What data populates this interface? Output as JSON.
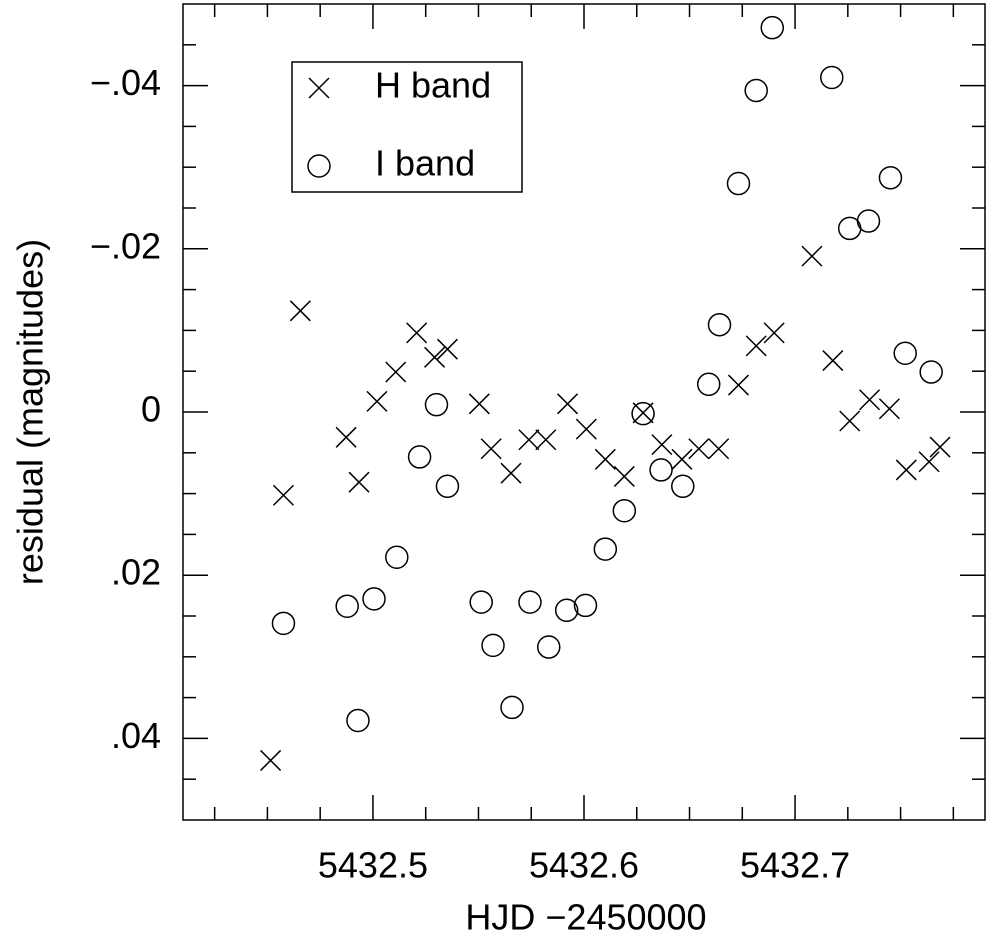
{
  "chart_data": {
    "type": "scatter",
    "x_label": "HJD −2450000",
    "y_label": "residual (magnitudes)",
    "xlim": [
      5432.41,
      5432.79
    ],
    "ylim": [
      0.05,
      -0.05
    ],
    "xticks": [
      5432.5,
      5432.6,
      5432.7
    ],
    "xminorticks": [
      5432.425,
      5432.45,
      5432.475,
      5432.525,
      5432.55,
      5432.575,
      5432.625,
      5432.65,
      5432.675,
      5432.725,
      5432.75,
      5432.775
    ],
    "yticks": [
      {
        "value": -0.04,
        "label": "−.04"
      },
      {
        "value": -0.02,
        "label": "−.02"
      },
      0,
      {
        "value": 0.02,
        "label": ".02"
      },
      {
        "value": 0.04,
        "label": ".04"
      }
    ],
    "yminorticks": [
      -0.045,
      -0.035,
      -0.03,
      -0.025,
      -0.015,
      -0.01,
      -0.005,
      0.005,
      0.01,
      0.015,
      0.025,
      0.03,
      0.035,
      0.045
    ],
    "legend": "upper left",
    "series": [
      {
        "name": "H band",
        "marker": "x",
        "color": "#000000",
        "x": [
          5432.4515,
          5432.4576,
          5432.4656,
          5432.4873,
          5432.4934,
          5432.5019,
          5432.5108,
          5432.5207,
          5432.5292,
          5432.5353,
          5432.5504,
          5432.556,
          5432.5654,
          5432.5739,
          5432.5819,
          5432.5922,
          5432.6011,
          5432.6101,
          5432.6191,
          5432.628,
          5432.6369,
          5432.6464,
          5432.6544,
          5432.6638,
          5432.6732,
          5432.6816,
          5432.6901,
          5432.708,
          5432.7179,
          5432.7259,
          5432.7353,
          5432.7447,
          5432.7527,
          5432.7635,
          5432.7687
        ],
        "values": [
          0.0427,
          0.0102,
          -0.0124,
          0.0031,
          0.0086,
          -0.0013,
          -0.0049,
          -0.0097,
          -0.0067,
          -0.0077,
          -0.001,
          0.0045,
          0.0075,
          0.0034,
          0.0034,
          -0.001,
          0.0021,
          0.0058,
          0.0079,
          0.0001,
          0.004,
          0.0058,
          0.0045,
          0.0045,
          -0.0033,
          -0.0081,
          -0.0097,
          -0.0191,
          -0.0063,
          0.0011,
          -0.0015,
          -0.0004,
          0.0071,
          0.0061,
          0.0043
        ]
      },
      {
        "name": "I band",
        "marker": "circle",
        "color": "#000000",
        "x": [
          5432.4576,
          5432.4878,
          5432.4929,
          5432.5005,
          5432.5113,
          5432.5221,
          5432.5301,
          5432.5353,
          5432.5513,
          5432.5569,
          5432.5659,
          5432.5744,
          5432.5833,
          5432.5918,
          5432.6007,
          5432.6101,
          5432.6191,
          5432.628,
          5432.6365,
          5432.6468,
          5432.6591,
          5432.6642,
          5432.6732,
          5432.6816,
          5432.6892,
          5432.7174,
          5432.7259,
          5432.7348,
          5432.7452,
          5432.7522,
          5432.7645
        ],
        "values": [
          0.0259,
          0.0238,
          0.0378,
          0.0229,
          0.0178,
          0.0055,
          -0.0009,
          0.0091,
          0.0233,
          0.0286,
          0.0362,
          0.0233,
          0.0288,
          0.0243,
          0.0237,
          0.0168,
          0.0121,
          0.0002,
          0.0071,
          0.0091,
          -0.0034,
          -0.0107,
          -0.028,
          -0.0394,
          -0.0471,
          -0.041,
          -0.0225,
          -0.0234,
          -0.0287,
          -0.0072,
          -0.0049
        ]
      }
    ]
  }
}
